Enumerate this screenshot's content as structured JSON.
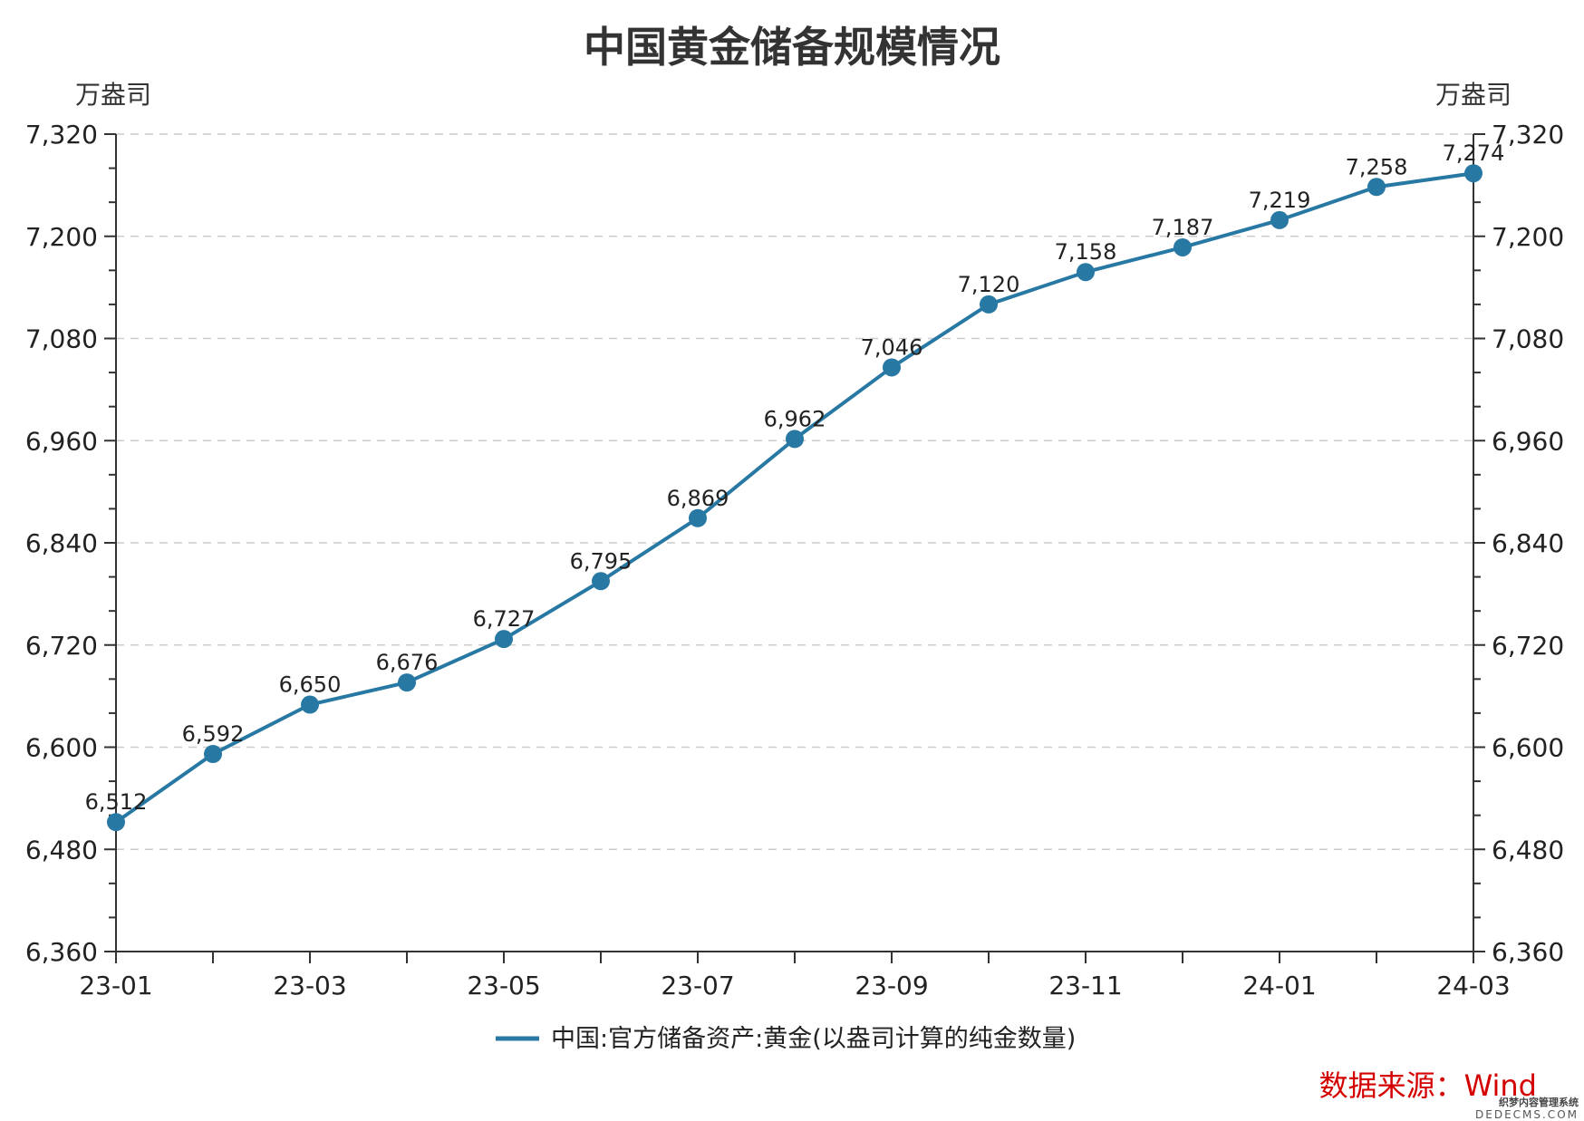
{
  "title": "中国黄金储备规模情况",
  "unit_left": "万盎司",
  "unit_right": "万盎司",
  "legend_label": "中国:官方储备资产:黄金(以盎司计算的纯金数量)",
  "source": "数据来源：Wind",
  "watermark": {
    "line1": "织梦内容管理系统",
    "line2": "DEDECMS.COM"
  },
  "colors": {
    "series": "#2878a4",
    "grid": "#cccccc",
    "source": "#d40000"
  },
  "chart_data": {
    "type": "line",
    "title": "中国黄金储备规模情况",
    "x": [
      "23-01",
      "23-02",
      "23-03",
      "23-04",
      "23-05",
      "23-06",
      "23-07",
      "23-08",
      "23-09",
      "23-10",
      "23-11",
      "23-12",
      "24-01",
      "24-02",
      "24-03"
    ],
    "x_tick_labels": [
      "23-01",
      "23-03",
      "23-05",
      "23-07",
      "23-09",
      "23-11",
      "24-01",
      "24-03"
    ],
    "series": [
      {
        "name": "中国:官方储备资产:黄金(以盎司计算的纯金数量)",
        "values": [
          6512,
          6592,
          6650,
          6676,
          6727,
          6795,
          6869,
          6962,
          7046,
          7120,
          7158,
          7187,
          7219,
          7258,
          7274
        ],
        "labels": [
          "6,512",
          "6,592",
          "6,650",
          "6,676",
          "6,727",
          "6,795",
          "6,869",
          "6,962",
          "7,046",
          "7,120",
          "7,158",
          "7,187",
          "7,219",
          "7,258",
          "7,274"
        ]
      }
    ],
    "ylabel": "万盎司",
    "ylim": [
      6360,
      7320
    ],
    "y_ticks": [
      6360,
      6480,
      6600,
      6720,
      6840,
      6960,
      7080,
      7200,
      7320
    ],
    "y_tick_labels": [
      "6,360",
      "6,480",
      "6,600",
      "6,720",
      "6,840",
      "6,960",
      "7,080",
      "7,200",
      "7,320"
    ],
    "dual_y_axis": true,
    "grid": "horizontal dashed",
    "legend": "bottom-center"
  }
}
